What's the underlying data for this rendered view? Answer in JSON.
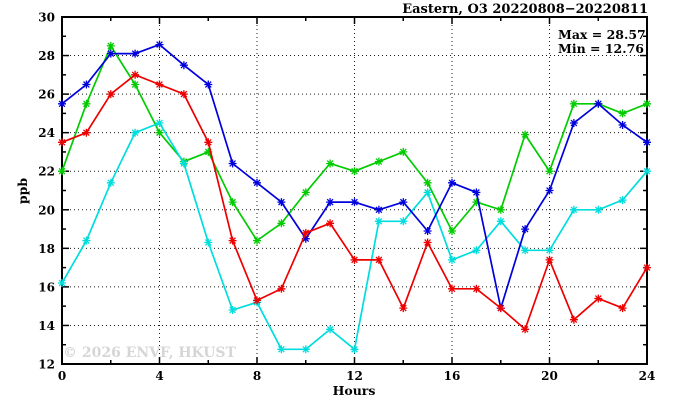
{
  "title": "Eastern, O3 20220808−20220811",
  "stats_box": {
    "max_label": "Max = 28.57",
    "min_label": "Min = 12.76"
  },
  "watermark": "© 2026 ENVF, HKUST",
  "chart_data": {
    "type": "line",
    "title": "Eastern, O3 20220808−20220811",
    "xlabel": "Hours",
    "ylabel": "ppb",
    "xlim": [
      0,
      24
    ],
    "ylim": [
      12,
      30
    ],
    "x_major_ticks": [
      0,
      4,
      8,
      12,
      16,
      20,
      24
    ],
    "x_minor_step": 2,
    "y_major_ticks": [
      12,
      14,
      16,
      18,
      20,
      22,
      24,
      26,
      28,
      30
    ],
    "y_minor_step": 1,
    "grid": {
      "style": "dotted",
      "x_lines": [
        4,
        8,
        12,
        16,
        20
      ],
      "y_lines": [
        14,
        16,
        18,
        20,
        22,
        24,
        26,
        28
      ]
    },
    "legend": "none",
    "marker": "asterisk",
    "stats": {
      "max": 28.57,
      "min": 12.76
    },
    "x": [
      0,
      1,
      2,
      3,
      4,
      5,
      6,
      7,
      8,
      9,
      10,
      11,
      12,
      13,
      14,
      15,
      16,
      17,
      18,
      19,
      20,
      21,
      22,
      23,
      24
    ],
    "series": [
      {
        "name": "green",
        "color": "#00cc00",
        "values": [
          22.0,
          25.5,
          28.5,
          26.5,
          24.0,
          22.5,
          23.0,
          20.4,
          18.4,
          19.3,
          20.9,
          22.4,
          22.0,
          22.5,
          23.0,
          21.4,
          18.9,
          20.4,
          20.0,
          23.9,
          22.0,
          25.5,
          25.5,
          25.0,
          25.5
        ]
      },
      {
        "name": "cyan",
        "color": "#00dddd",
        "values": [
          16.2,
          18.4,
          21.4,
          24.0,
          24.5,
          22.4,
          18.3,
          14.8,
          15.2,
          12.76,
          12.76,
          13.8,
          12.76,
          19.4,
          19.4,
          20.9,
          17.4,
          17.9,
          19.4,
          17.9,
          17.9,
          20.0,
          20.0,
          20.5,
          22.0
        ]
      },
      {
        "name": "blue",
        "color": "#0000dd",
        "values": [
          25.5,
          26.5,
          28.1,
          28.1,
          28.57,
          27.5,
          26.5,
          22.4,
          21.4,
          20.4,
          18.5,
          20.4,
          20.4,
          20.0,
          20.4,
          18.9,
          21.4,
          20.9,
          14.9,
          19.0,
          21.0,
          24.5,
          25.5,
          24.4,
          23.5
        ]
      },
      {
        "name": "red",
        "color": "#ee0000",
        "values": [
          23.5,
          24.0,
          26.0,
          27.0,
          26.5,
          26.0,
          23.5,
          18.4,
          15.3,
          15.9,
          18.8,
          19.3,
          17.4,
          17.4,
          14.9,
          18.3,
          15.9,
          15.9,
          14.9,
          13.8,
          17.4,
          14.3,
          15.4,
          14.9,
          17.0
        ]
      }
    ]
  }
}
